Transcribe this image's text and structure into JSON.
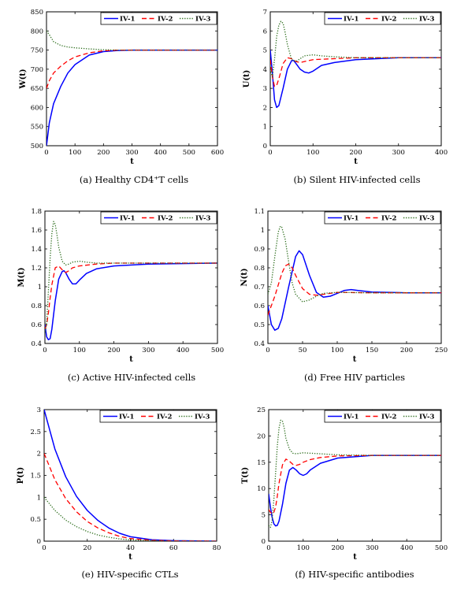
{
  "colors": {
    "iv1": "#0000ff",
    "iv2": "#ff0000",
    "iv3": "#2f6f1f",
    "axis": "#000000",
    "background": "#ffffff"
  },
  "legend_labels": [
    "IV-1",
    "IV-2",
    "IV-3"
  ],
  "captions": [
    "(a) Healthy CD4⁺T cells",
    "(b) Silent HIV-infected cells",
    "(c) Active HIV-infected cells",
    "(d) Free HIV particles",
    "(e) HIV-specific CTLs",
    "(f) HIV-specific antibodies"
  ],
  "chart_data": [
    {
      "type": "line",
      "title": "",
      "xlabel": "t",
      "ylabel": "W(t)",
      "xlim": [
        0,
        600
      ],
      "ylim": [
        500,
        850
      ],
      "xticks": [
        0,
        100,
        200,
        300,
        400,
        500,
        600
      ],
      "yticks": [
        500,
        550,
        600,
        650,
        700,
        750,
        800,
        850
      ],
      "legend": "top-right",
      "series": [
        {
          "name": "IV-1",
          "x": [
            0,
            10,
            25,
            50,
            75,
            100,
            150,
            200,
            250,
            300,
            400,
            600
          ],
          "y": [
            500,
            560,
            610,
            655,
            690,
            712,
            737,
            746,
            749,
            750,
            750,
            750
          ]
        },
        {
          "name": "IV-2",
          "x": [
            0,
            10,
            25,
            50,
            75,
            100,
            150,
            200,
            250,
            300,
            600
          ],
          "y": [
            650,
            670,
            690,
            708,
            722,
            732,
            743,
            748,
            750,
            750,
            750
          ]
        },
        {
          "name": "IV-3",
          "x": [
            0,
            10,
            25,
            50,
            75,
            100,
            150,
            200,
            250,
            300,
            600
          ],
          "y": [
            800,
            790,
            772,
            762,
            758,
            756,
            753,
            751,
            750,
            750,
            750
          ]
        }
      ]
    },
    {
      "type": "line",
      "title": "",
      "xlabel": "t",
      "ylabel": "U(t)",
      "xlim": [
        0,
        400
      ],
      "ylim": [
        0,
        7
      ],
      "xticks": [
        0,
        100,
        200,
        300,
        400
      ],
      "yticks": [
        0,
        1,
        2,
        3,
        4,
        5,
        6,
        7
      ],
      "legend": "top-right",
      "series": [
        {
          "name": "IV-1",
          "x": [
            0,
            5,
            10,
            15,
            20,
            30,
            40,
            50,
            55,
            60,
            70,
            80,
            90,
            100,
            120,
            150,
            200,
            300,
            400
          ],
          "y": [
            5,
            3.8,
            2.4,
            2.0,
            2.1,
            3.0,
            4.0,
            4.45,
            4.45,
            4.3,
            4.0,
            3.85,
            3.8,
            3.9,
            4.2,
            4.35,
            4.5,
            4.6,
            4.6
          ]
        },
        {
          "name": "IV-2",
          "x": [
            0,
            5,
            10,
            15,
            20,
            30,
            40,
            50,
            60,
            70,
            80,
            100,
            150,
            200,
            400
          ],
          "y": [
            4.5,
            3.6,
            3.1,
            3.15,
            3.5,
            4.3,
            4.6,
            4.55,
            4.4,
            4.35,
            4.4,
            4.5,
            4.55,
            4.6,
            4.6
          ]
        },
        {
          "name": "IV-3",
          "x": [
            0,
            5,
            10,
            15,
            20,
            25,
            30,
            35,
            40,
            50,
            60,
            70,
            80,
            100,
            120,
            150,
            200,
            400
          ],
          "y": [
            4.0,
            3.6,
            4.5,
            5.7,
            6.3,
            6.5,
            6.4,
            5.9,
            5.3,
            4.5,
            4.4,
            4.55,
            4.7,
            4.75,
            4.7,
            4.65,
            4.6,
            4.6
          ]
        }
      ]
    },
    {
      "type": "line",
      "title": "",
      "xlabel": "t",
      "ylabel": "M(t)",
      "xlim": [
        0,
        500
      ],
      "ylim": [
        0.4,
        1.8
      ],
      "xticks": [
        0,
        100,
        200,
        300,
        400,
        500
      ],
      "yticks": [
        0.4,
        0.6,
        0.8,
        1,
        1.2,
        1.4,
        1.6,
        1.8
      ],
      "legend": "top-right",
      "series": [
        {
          "name": "IV-1",
          "x": [
            0,
            5,
            10,
            15,
            20,
            30,
            40,
            50,
            55,
            60,
            70,
            80,
            90,
            100,
            120,
            150,
            200,
            300,
            500
          ],
          "y": [
            0.6,
            0.47,
            0.44,
            0.45,
            0.55,
            0.85,
            1.08,
            1.16,
            1.17,
            1.15,
            1.08,
            1.03,
            1.03,
            1.07,
            1.14,
            1.19,
            1.22,
            1.24,
            1.25
          ]
        },
        {
          "name": "IV-2",
          "x": [
            0,
            5,
            10,
            15,
            20,
            30,
            40,
            50,
            60,
            70,
            80,
            100,
            150,
            200,
            500
          ],
          "y": [
            0.55,
            0.6,
            0.72,
            0.88,
            1.02,
            1.2,
            1.22,
            1.18,
            1.15,
            1.17,
            1.2,
            1.22,
            1.24,
            1.25,
            1.25
          ]
        },
        {
          "name": "IV-3",
          "x": [
            0,
            5,
            10,
            15,
            20,
            25,
            30,
            35,
            40,
            50,
            60,
            70,
            80,
            100,
            120,
            150,
            200,
            500
          ],
          "y": [
            0.5,
            0.62,
            0.95,
            1.3,
            1.56,
            1.69,
            1.66,
            1.55,
            1.42,
            1.27,
            1.23,
            1.24,
            1.26,
            1.27,
            1.26,
            1.25,
            1.25,
            1.25
          ]
        }
      ]
    },
    {
      "type": "line",
      "title": "",
      "xlabel": "t",
      "ylabel": "N(t)",
      "xlim": [
        0,
        250
      ],
      "ylim": [
        0.4,
        1.1
      ],
      "xticks": [
        0,
        50,
        100,
        150,
        200,
        250
      ],
      "yticks": [
        0.4,
        0.5,
        0.6,
        0.7,
        0.8,
        0.9,
        1,
        1.1
      ],
      "legend": "top-right",
      "series": [
        {
          "name": "IV-1",
          "x": [
            0,
            5,
            10,
            15,
            20,
            30,
            40,
            45,
            50,
            60,
            70,
            80,
            90,
            100,
            110,
            120,
            130,
            150,
            200,
            250
          ],
          "y": [
            0.6,
            0.5,
            0.47,
            0.48,
            0.53,
            0.7,
            0.86,
            0.89,
            0.87,
            0.76,
            0.67,
            0.645,
            0.65,
            0.665,
            0.68,
            0.685,
            0.68,
            0.672,
            0.668,
            0.668
          ]
        },
        {
          "name": "IV-2",
          "x": [
            0,
            5,
            10,
            15,
            20,
            25,
            30,
            35,
            40,
            50,
            60,
            70,
            80,
            100,
            150,
            250
          ],
          "y": [
            0.55,
            0.6,
            0.65,
            0.71,
            0.77,
            0.81,
            0.82,
            0.8,
            0.76,
            0.69,
            0.66,
            0.655,
            0.66,
            0.67,
            0.668,
            0.668
          ]
        },
        {
          "name": "IV-3",
          "x": [
            0,
            5,
            10,
            15,
            18,
            20,
            25,
            30,
            35,
            40,
            50,
            60,
            70,
            80,
            100,
            150,
            250
          ],
          "y": [
            0.66,
            0.72,
            0.86,
            0.99,
            1.02,
            1.015,
            0.95,
            0.83,
            0.72,
            0.66,
            0.62,
            0.63,
            0.65,
            0.665,
            0.67,
            0.668,
            0.668
          ]
        }
      ]
    },
    {
      "type": "line",
      "title": "",
      "xlabel": "t",
      "ylabel": "P(t)",
      "xlim": [
        0,
        80
      ],
      "ylim": [
        0,
        3
      ],
      "xticks": [
        0,
        20,
        40,
        60,
        80
      ],
      "yticks": [
        0,
        0.5,
        1,
        1.5,
        2,
        2.5,
        3
      ],
      "legend": "top-right",
      "series": [
        {
          "name": "IV-1",
          "x": [
            0,
            5,
            10,
            15,
            20,
            25,
            30,
            35,
            40,
            50,
            60,
            80
          ],
          "y": [
            3,
            2.1,
            1.47,
            1.02,
            0.7,
            0.47,
            0.3,
            0.18,
            0.1,
            0.03,
            0.01,
            0
          ]
        },
        {
          "name": "IV-2",
          "x": [
            0,
            5,
            10,
            15,
            20,
            25,
            30,
            35,
            40,
            50,
            60,
            80
          ],
          "y": [
            2,
            1.4,
            0.97,
            0.67,
            0.45,
            0.3,
            0.19,
            0.11,
            0.06,
            0.02,
            0.005,
            0
          ]
        },
        {
          "name": "IV-3",
          "x": [
            0,
            5,
            10,
            15,
            20,
            25,
            30,
            35,
            40,
            50,
            60,
            80
          ],
          "y": [
            1,
            0.7,
            0.48,
            0.33,
            0.22,
            0.14,
            0.09,
            0.05,
            0.03,
            0.01,
            0,
            0
          ]
        }
      ]
    },
    {
      "type": "line",
      "title": "",
      "xlabel": "t",
      "ylabel": "T(t)",
      "xlim": [
        0,
        500
      ],
      "ylim": [
        0,
        25
      ],
      "xticks": [
        0,
        100,
        200,
        300,
        400,
        500
      ],
      "yticks": [
        0,
        5,
        10,
        15,
        20,
        25
      ],
      "legend": "top-right",
      "series": [
        {
          "name": "IV-1",
          "x": [
            0,
            5,
            10,
            15,
            20,
            25,
            30,
            40,
            50,
            60,
            70,
            80,
            90,
            100,
            110,
            120,
            150,
            200,
            300,
            500
          ],
          "y": [
            9,
            6.5,
            4.5,
            3.3,
            2.9,
            3.0,
            3.8,
            7,
            11,
            13.5,
            14,
            13.5,
            12.8,
            12.5,
            12.8,
            13.5,
            14.8,
            15.8,
            16.3,
            16.3
          ]
        },
        {
          "name": "IV-2",
          "x": [
            0,
            5,
            10,
            15,
            20,
            25,
            30,
            40,
            50,
            60,
            70,
            80,
            90,
            100,
            120,
            150,
            200,
            300,
            500
          ],
          "y": [
            6,
            5.5,
            5.2,
            5.5,
            6.5,
            8.5,
            11,
            14.5,
            15.6,
            15.2,
            14.6,
            14.4,
            14.6,
            15,
            15.5,
            15.9,
            16.2,
            16.3,
            16.3
          ]
        },
        {
          "name": "IV-3",
          "x": [
            0,
            5,
            10,
            15,
            20,
            25,
            30,
            35,
            40,
            45,
            50,
            60,
            70,
            80,
            100,
            150,
            200,
            300,
            500
          ],
          "y": [
            3,
            2.6,
            4,
            8,
            13,
            18,
            21.5,
            23,
            22.8,
            21.5,
            19.5,
            17.5,
            16.7,
            16.6,
            16.8,
            16.6,
            16.4,
            16.3,
            16.3
          ]
        }
      ]
    }
  ]
}
